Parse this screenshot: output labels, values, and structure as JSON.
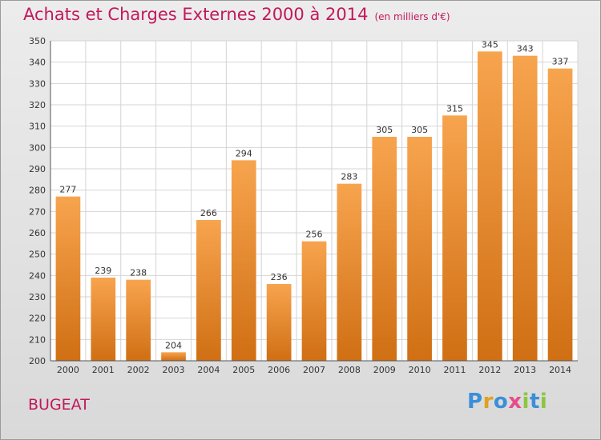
{
  "title": "Achats et Charges Externes 2000 à 2014",
  "unit": "(en milliers d'€)",
  "commune": "BUGEAT",
  "logo_text": "Proxiti",
  "colors": {
    "title": "#c2185b",
    "bar_top": "#f7a44e",
    "bar_bottom": "#d06f14"
  },
  "chart_data": {
    "type": "bar",
    "categories": [
      "2000",
      "2001",
      "2002",
      "2003",
      "2004",
      "2005",
      "2006",
      "2007",
      "2008",
      "2009",
      "2010",
      "2011",
      "2012",
      "2013",
      "2014"
    ],
    "values": [
      277,
      239,
      238,
      204,
      266,
      294,
      236,
      256,
      283,
      305,
      305,
      315,
      345,
      343,
      337
    ],
    "ylim": [
      200,
      350
    ],
    "yticks": [
      200,
      210,
      220,
      230,
      240,
      250,
      260,
      270,
      280,
      290,
      300,
      310,
      320,
      330,
      340,
      350
    ],
    "grid": true,
    "xlabel": "",
    "ylabel": ""
  }
}
